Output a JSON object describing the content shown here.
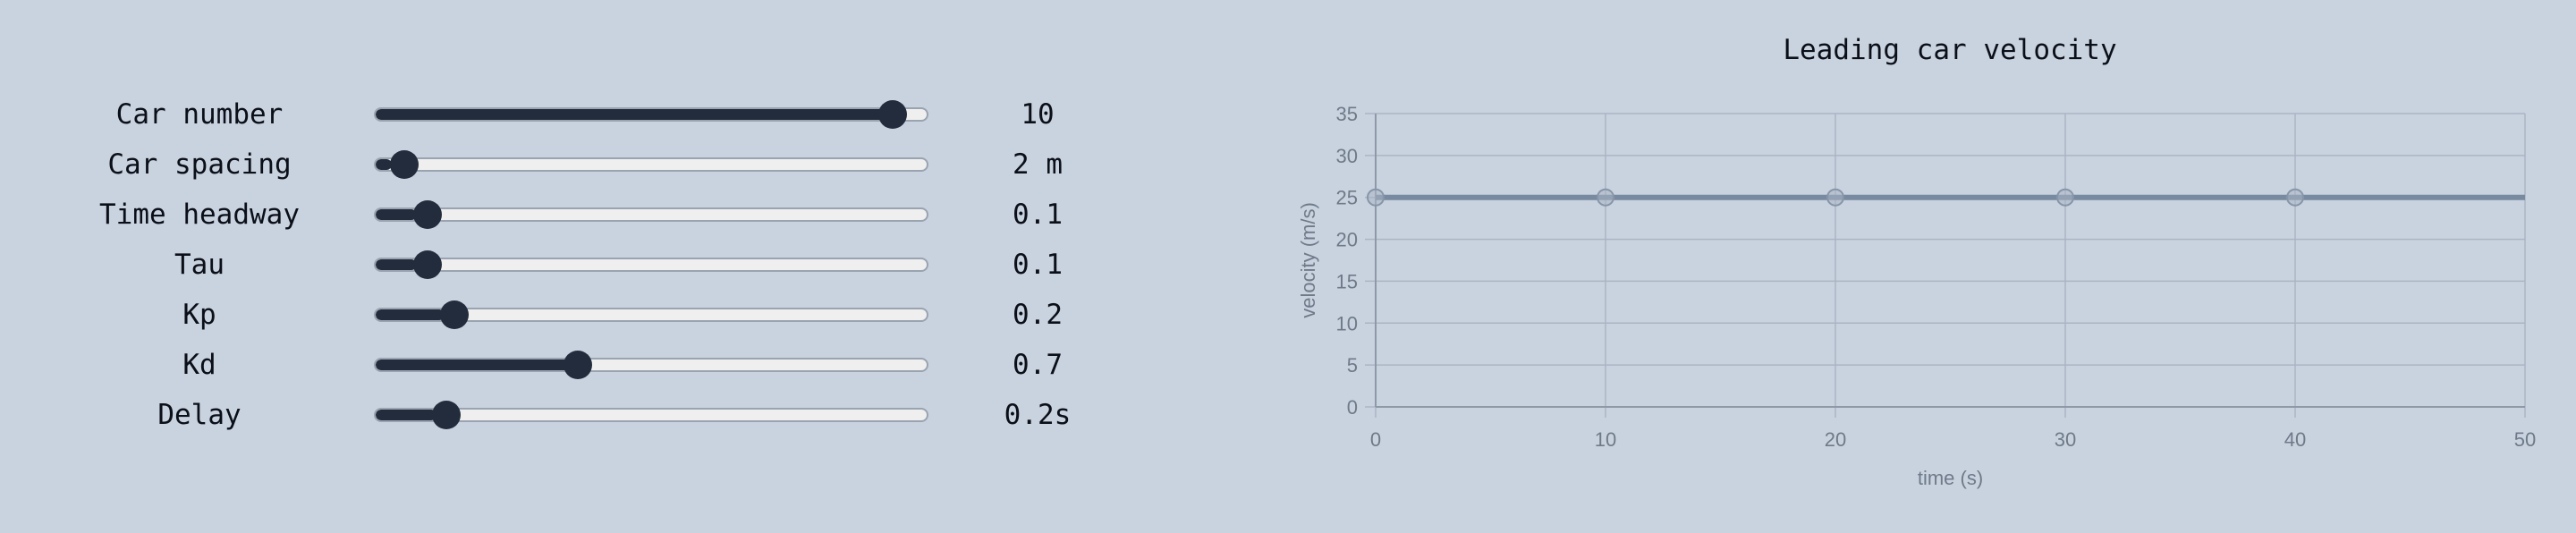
{
  "controls": [
    {
      "label": "Car number",
      "display": "10",
      "fraction": 0.96
    },
    {
      "label": "Car spacing",
      "display": "2 m",
      "fraction": 0.03
    },
    {
      "label": "Time headway",
      "display": "0.1",
      "fraction": 0.075
    },
    {
      "label": "Tau",
      "display": "0.1",
      "fraction": 0.075
    },
    {
      "label": "Kp",
      "display": "0.2",
      "fraction": 0.125
    },
    {
      "label": "Kd",
      "display": "0.7",
      "fraction": 0.36
    },
    {
      "label": "Delay",
      "display": "0.2s",
      "fraction": 0.11
    }
  ],
  "colors": {
    "slider_fill": "#222c3c",
    "slider_track": "#efefef",
    "series_line": "#778aa0",
    "grid": "#aab4c2"
  },
  "chart_data": {
    "type": "line",
    "title": "Leading car velocity",
    "xlabel": "time (s)",
    "ylabel": "velocity (m/s)",
    "xlim": [
      0,
      50
    ],
    "ylim": [
      0,
      35
    ],
    "x_ticks": [
      0,
      10,
      20,
      30,
      40,
      50
    ],
    "y_ticks": [
      0,
      5,
      10,
      15,
      20,
      25,
      30,
      35
    ],
    "grid": true,
    "series": [
      {
        "x": [
          0,
          10,
          20,
          30,
          40,
          50
        ],
        "y": [
          25,
          25,
          25,
          25,
          25,
          25
        ],
        "markers": [
          0,
          10,
          20,
          30,
          40
        ]
      }
    ]
  }
}
